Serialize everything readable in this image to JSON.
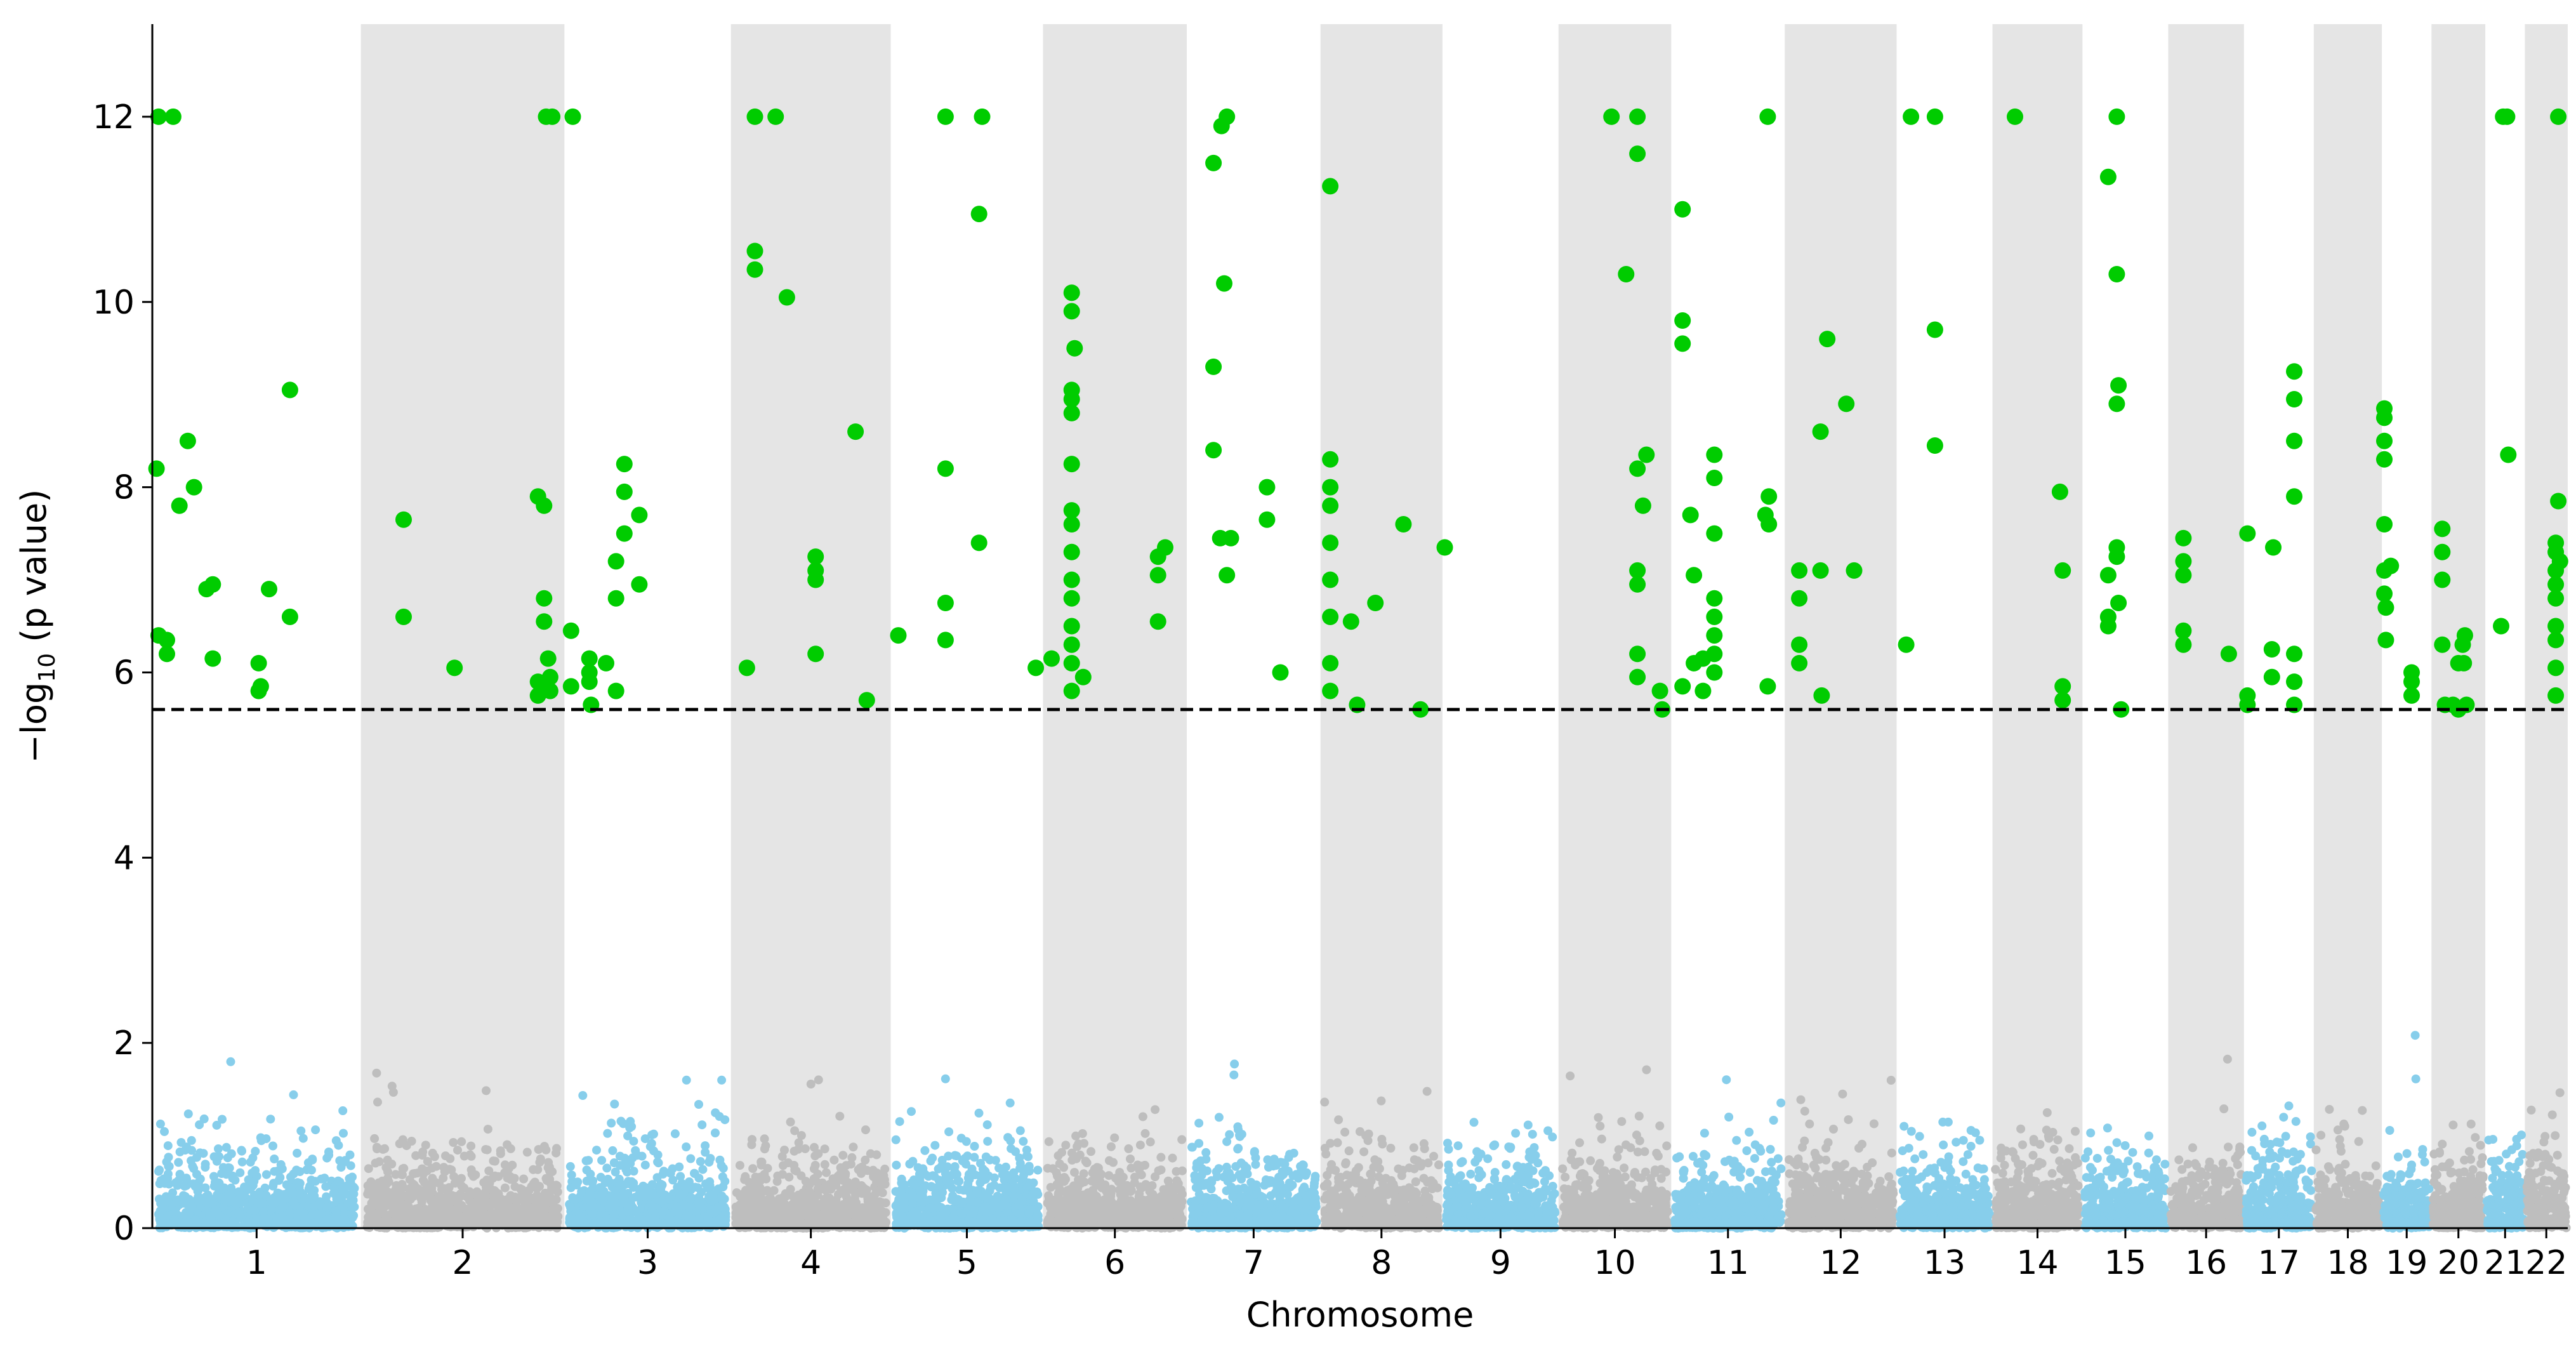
{
  "chart_data": {
    "type": "scatter",
    "title": "",
    "xlabel": "Chromosome",
    "ylabel": {
      "main": "−log",
      "sub": "10",
      "tail": " (p value)"
    },
    "ylim": [
      0,
      13
    ],
    "yticks": [
      "0",
      "2",
      "4",
      "6",
      "8",
      "10",
      "12"
    ],
    "grid": false,
    "threshold": 5.6,
    "colors": {
      "odd_chromosome": "#87ceeb",
      "even_chromosome": "#bebebe",
      "significant": "#00cc00",
      "band": "#e5e5e5",
      "threshold_line": "#000000"
    },
    "chromosomes": [
      {
        "name": "1",
        "start": 0,
        "end": 248
      },
      {
        "name": "2",
        "start": 248,
        "end": 490
      },
      {
        "name": "3",
        "start": 490,
        "end": 688
      },
      {
        "name": "4",
        "start": 688,
        "end": 878
      },
      {
        "name": "5",
        "start": 878,
        "end": 1059
      },
      {
        "name": "6",
        "start": 1059,
        "end": 1230
      },
      {
        "name": "7",
        "start": 1230,
        "end": 1389
      },
      {
        "name": "8",
        "start": 1389,
        "end": 1534
      },
      {
        "name": "9",
        "start": 1534,
        "end": 1672
      },
      {
        "name": "10",
        "start": 1672,
        "end": 1806
      },
      {
        "name": "11",
        "start": 1806,
        "end": 1941
      },
      {
        "name": "12",
        "start": 1941,
        "end": 2074
      },
      {
        "name": "13",
        "start": 2074,
        "end": 2188
      },
      {
        "name": "14",
        "start": 2188,
        "end": 2295
      },
      {
        "name": "15",
        "start": 2295,
        "end": 2397
      },
      {
        "name": "16",
        "start": 2397,
        "end": 2487
      },
      {
        "name": "17",
        "start": 2487,
        "end": 2570
      },
      {
        "name": "18",
        "start": 2570,
        "end": 2651
      },
      {
        "name": "19",
        "start": 2651,
        "end": 2710
      },
      {
        "name": "20",
        "start": 2710,
        "end": 2774
      },
      {
        "name": "21",
        "start": 2774,
        "end": 2821
      },
      {
        "name": "22",
        "start": 2821,
        "end": 2872
      }
    ],
    "significant_points": [
      [
        1,
        0.03,
        12
      ],
      [
        1,
        0.1,
        12
      ],
      [
        1,
        0.02,
        8.2
      ],
      [
        1,
        0.03,
        6.4
      ],
      [
        1,
        0.07,
        6.2
      ],
      [
        1,
        0.07,
        6.35
      ],
      [
        1,
        0.13,
        7.8
      ],
      [
        1,
        0.17,
        8.5
      ],
      [
        1,
        0.2,
        8.0
      ],
      [
        1,
        0.26,
        6.9
      ],
      [
        1,
        0.29,
        6.95
      ],
      [
        1,
        0.29,
        6.15
      ],
      [
        1,
        0.51,
        6.1
      ],
      [
        1,
        0.51,
        5.8
      ],
      [
        1,
        0.52,
        5.85
      ],
      [
        1,
        0.56,
        6.9
      ],
      [
        1,
        0.66,
        6.6
      ],
      [
        1,
        0.66,
        9.05
      ],
      [
        2,
        0.21,
        7.65
      ],
      [
        2,
        0.21,
        6.6
      ],
      [
        2,
        0.46,
        6.05
      ],
      [
        2,
        0.87,
        7.9
      ],
      [
        2,
        0.87,
        5.9
      ],
      [
        2,
        0.87,
        5.75
      ],
      [
        2,
        0.9,
        7.8
      ],
      [
        2,
        0.9,
        6.8
      ],
      [
        2,
        0.9,
        6.55
      ],
      [
        2,
        0.92,
        6.15
      ],
      [
        2,
        0.93,
        5.95
      ],
      [
        2,
        0.93,
        5.8
      ],
      [
        2,
        0.91,
        12
      ],
      [
        2,
        0.94,
        12
      ],
      [
        3,
        0.05,
        12
      ],
      [
        3,
        0.04,
        6.45
      ],
      [
        3,
        0.04,
        5.85
      ],
      [
        3,
        0.15,
        6.15
      ],
      [
        3,
        0.15,
        6.0
      ],
      [
        3,
        0.15,
        5.9
      ],
      [
        3,
        0.16,
        5.65
      ],
      [
        3,
        0.25,
        6.1
      ],
      [
        3,
        0.31,
        7.2
      ],
      [
        3,
        0.31,
        6.8
      ],
      [
        3,
        0.31,
        5.8
      ],
      [
        3,
        0.36,
        8.25
      ],
      [
        3,
        0.36,
        7.95
      ],
      [
        3,
        0.36,
        7.5
      ],
      [
        3,
        0.45,
        7.7
      ],
      [
        3,
        0.45,
        6.95
      ],
      [
        4,
        0.15,
        12
      ],
      [
        4,
        0.28,
        12
      ],
      [
        4,
        0.15,
        10.55
      ],
      [
        4,
        0.15,
        10.35
      ],
      [
        4,
        0.35,
        10.05
      ],
      [
        4,
        0.1,
        6.05
      ],
      [
        4,
        0.53,
        7.25
      ],
      [
        4,
        0.53,
        7.1
      ],
      [
        4,
        0.53,
        7.0
      ],
      [
        4,
        0.53,
        6.2
      ],
      [
        4,
        0.78,
        8.6
      ],
      [
        4,
        0.85,
        5.7
      ],
      [
        5,
        0.05,
        6.4
      ],
      [
        5,
        0.36,
        12
      ],
      [
        5,
        0.6,
        12
      ],
      [
        5,
        0.36,
        8.2
      ],
      [
        5,
        0.36,
        6.75
      ],
      [
        5,
        0.36,
        6.35
      ],
      [
        5,
        0.58,
        10.95
      ],
      [
        5,
        0.58,
        7.4
      ],
      [
        6,
        -0.05,
        6.05
      ],
      [
        6,
        0.06,
        6.15
      ],
      [
        6,
        0.2,
        10.1
      ],
      [
        6,
        0.2,
        9.9
      ],
      [
        6,
        0.22,
        9.5
      ],
      [
        6,
        0.2,
        9.05
      ],
      [
        6,
        0.2,
        8.95
      ],
      [
        6,
        0.2,
        8.8
      ],
      [
        6,
        0.2,
        8.25
      ],
      [
        6,
        0.2,
        7.75
      ],
      [
        6,
        0.2,
        7.6
      ],
      [
        6,
        0.2,
        7.3
      ],
      [
        6,
        0.2,
        7.0
      ],
      [
        6,
        0.2,
        6.8
      ],
      [
        6,
        0.2,
        6.5
      ],
      [
        6,
        0.2,
        6.3
      ],
      [
        6,
        0.2,
        6.1
      ],
      [
        6,
        0.2,
        5.8
      ],
      [
        6,
        0.28,
        5.95
      ],
      [
        6,
        0.8,
        7.25
      ],
      [
        6,
        0.8,
        7.05
      ],
      [
        6,
        0.8,
        6.55
      ],
      [
        6,
        0.85,
        7.35
      ],
      [
        7,
        0.2,
        11.5
      ],
      [
        7,
        0.26,
        11.9
      ],
      [
        7,
        0.3,
        12
      ],
      [
        7,
        0.28,
        10.2
      ],
      [
        7,
        0.2,
        9.3
      ],
      [
        7,
        0.2,
        8.4
      ],
      [
        7,
        0.25,
        7.45
      ],
      [
        7,
        0.33,
        7.45
      ],
      [
        7,
        0.3,
        7.05
      ],
      [
        7,
        0.6,
        8.0
      ],
      [
        7,
        0.6,
        7.65
      ],
      [
        7,
        0.7,
        6.0
      ],
      [
        8,
        0.08,
        11.25
      ],
      [
        8,
        0.08,
        8.3
      ],
      [
        8,
        0.08,
        8.0
      ],
      [
        8,
        0.08,
        7.8
      ],
      [
        8,
        0.08,
        7.4
      ],
      [
        8,
        0.08,
        7.0
      ],
      [
        8,
        0.08,
        6.6
      ],
      [
        8,
        0.08,
        6.1
      ],
      [
        8,
        0.08,
        5.8
      ],
      [
        8,
        0.25,
        6.55
      ],
      [
        8,
        0.3,
        5.65
      ],
      [
        8,
        0.45,
        6.75
      ],
      [
        8,
        0.68,
        7.6
      ],
      [
        8,
        0.82,
        5.6
      ],
      [
        9,
        0.02,
        7.35
      ],
      [
        10,
        0.47,
        12
      ],
      [
        10,
        0.7,
        12
      ],
      [
        10,
        0.6,
        10.3
      ],
      [
        10,
        0.7,
        11.6
      ],
      [
        10,
        0.7,
        8.2
      ],
      [
        10,
        0.7,
        7.1
      ],
      [
        10,
        0.7,
        6.95
      ],
      [
        10,
        0.7,
        6.2
      ],
      [
        10,
        0.7,
        5.95
      ],
      [
        10,
        0.78,
        8.35
      ],
      [
        10,
        0.75,
        7.8
      ],
      [
        10,
        0.9,
        5.8
      ],
      [
        10,
        0.92,
        5.6
      ],
      [
        11,
        0.1,
        11.0
      ],
      [
        11,
        0.1,
        9.8
      ],
      [
        11,
        0.1,
        9.55
      ],
      [
        11,
        0.1,
        5.85
      ],
      [
        11,
        0.17,
        7.7
      ],
      [
        11,
        0.2,
        7.05
      ],
      [
        11,
        0.2,
        6.1
      ],
      [
        11,
        0.28,
        6.15
      ],
      [
        11,
        0.28,
        5.8
      ],
      [
        11,
        0.38,
        8.35
      ],
      [
        11,
        0.38,
        8.1
      ],
      [
        11,
        0.38,
        7.5
      ],
      [
        11,
        0.38,
        6.8
      ],
      [
        11,
        0.38,
        6.6
      ],
      [
        11,
        0.38,
        6.4
      ],
      [
        11,
        0.38,
        6.2
      ],
      [
        11,
        0.38,
        6.0
      ],
      [
        11,
        0.85,
        12
      ],
      [
        11,
        0.83,
        7.7
      ],
      [
        11,
        0.86,
        7.9
      ],
      [
        11,
        0.86,
        7.6
      ],
      [
        11,
        0.85,
        5.85
      ],
      [
        12,
        0.13,
        7.1
      ],
      [
        12,
        0.13,
        6.8
      ],
      [
        12,
        0.13,
        6.3
      ],
      [
        12,
        0.13,
        6.1
      ],
      [
        12,
        0.32,
        8.6
      ],
      [
        12,
        0.32,
        7.1
      ],
      [
        12,
        0.38,
        9.6
      ],
      [
        12,
        0.55,
        8.9
      ],
      [
        12,
        0.62,
        7.1
      ],
      [
        12,
        0.33,
        5.75
      ],
      [
        13,
        0.15,
        12
      ],
      [
        13,
        0.4,
        12
      ],
      [
        13,
        0.1,
        6.3
      ],
      [
        13,
        0.4,
        9.7
      ],
      [
        13,
        0.4,
        8.45
      ],
      [
        14,
        0.25,
        12
      ],
      [
        14,
        0.75,
        7.95
      ],
      [
        14,
        0.78,
        7.1
      ],
      [
        14,
        0.78,
        5.85
      ],
      [
        14,
        0.78,
        5.7
      ],
      [
        15,
        0.3,
        11.35
      ],
      [
        15,
        0.3,
        7.05
      ],
      [
        15,
        0.3,
        6.6
      ],
      [
        15,
        0.3,
        6.5
      ],
      [
        15,
        0.4,
        12
      ],
      [
        15,
        0.4,
        10.3
      ],
      [
        15,
        0.42,
        9.1
      ],
      [
        15,
        0.4,
        8.9
      ],
      [
        15,
        0.4,
        7.35
      ],
      [
        15,
        0.4,
        7.25
      ],
      [
        15,
        0.42,
        6.75
      ],
      [
        15,
        0.45,
        5.6
      ],
      [
        16,
        0.2,
        7.45
      ],
      [
        16,
        0.2,
        7.2
      ],
      [
        16,
        0.2,
        7.05
      ],
      [
        16,
        0.2,
        6.45
      ],
      [
        16,
        0.2,
        6.3
      ],
      [
        16,
        0.8,
        6.2
      ],
      [
        17,
        0.05,
        7.5
      ],
      [
        17,
        0.05,
        5.75
      ],
      [
        17,
        0.05,
        5.65
      ],
      [
        17,
        0.4,
        6.25
      ],
      [
        17,
        0.4,
        5.95
      ],
      [
        17,
        0.42,
        7.35
      ],
      [
        17,
        0.72,
        9.25
      ],
      [
        17,
        0.72,
        8.95
      ],
      [
        17,
        0.72,
        8.5
      ],
      [
        17,
        0.72,
        7.9
      ],
      [
        17,
        0.72,
        6.2
      ],
      [
        17,
        0.72,
        5.9
      ],
      [
        17,
        0.72,
        5.65
      ],
      [
        19,
        0.05,
        8.85
      ],
      [
        19,
        0.05,
        8.75
      ],
      [
        19,
        0.05,
        8.5
      ],
      [
        19,
        0.05,
        8.3
      ],
      [
        19,
        0.05,
        7.6
      ],
      [
        19,
        0.05,
        7.1
      ],
      [
        19,
        0.05,
        6.85
      ],
      [
        19,
        0.08,
        6.7
      ],
      [
        19,
        0.08,
        6.35
      ],
      [
        19,
        0.18,
        7.15
      ],
      [
        19,
        0.6,
        6.0
      ],
      [
        19,
        0.6,
        5.9
      ],
      [
        19,
        0.6,
        5.75
      ],
      [
        20,
        0.2,
        7.55
      ],
      [
        20,
        0.2,
        7.3
      ],
      [
        20,
        0.2,
        7.0
      ],
      [
        20,
        0.2,
        6.3
      ],
      [
        20,
        0.25,
        5.65
      ],
      [
        20,
        0.4,
        5.65
      ],
      [
        20,
        0.5,
        6.1
      ],
      [
        20,
        0.5,
        5.6
      ],
      [
        20,
        0.58,
        6.3
      ],
      [
        20,
        0.6,
        6.1
      ],
      [
        20,
        0.62,
        6.4
      ],
      [
        20,
        0.65,
        5.65
      ],
      [
        21,
        0.45,
        12
      ],
      [
        21,
        0.55,
        12
      ],
      [
        21,
        0.4,
        6.5
      ],
      [
        21,
        0.58,
        8.35
      ],
      [
        22,
        0.78,
        12
      ],
      [
        22,
        0.72,
        7.4
      ],
      [
        22,
        0.72,
        7.3
      ],
      [
        22,
        0.78,
        7.85
      ],
      [
        22,
        0.72,
        7.1
      ],
      [
        22,
        0.72,
        6.95
      ],
      [
        22,
        0.72,
        6.8
      ],
      [
        22,
        0.72,
        6.5
      ],
      [
        22,
        0.72,
        6.35
      ],
      [
        22,
        0.72,
        6.05
      ],
      [
        22,
        0.72,
        5.75
      ],
      [
        22,
        0.82,
        7.2
      ]
    ]
  }
}
